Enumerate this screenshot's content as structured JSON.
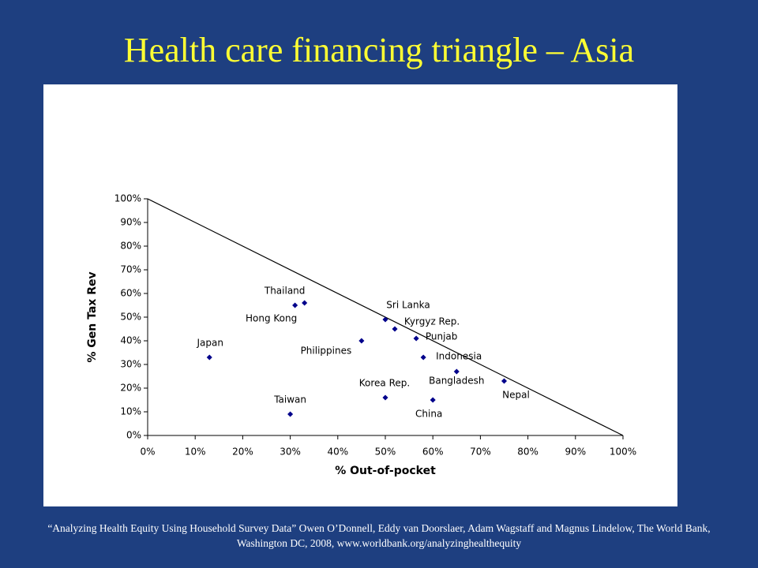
{
  "chart_data": {
    "type": "scatter",
    "title": "Health care financing triangle – Asia",
    "x_label": "% Out-of-pocket",
    "y_label": "% Gen Tax Rev",
    "labels": [
      "Japan",
      "Thailand",
      "Hong Kong",
      "Philippines",
      "Sri Lanka",
      "Kyrgyz Rep.",
      "Punjab",
      "Indonesia",
      "Bangladesh",
      "Nepal",
      "Korea Rep.",
      "China",
      "Taiwan"
    ],
    "x": [
      13,
      33,
      31,
      45,
      50,
      52,
      56.5,
      58,
      65,
      75,
      50,
      60,
      30
    ],
    "y": [
      33,
      56,
      55,
      40,
      49,
      45,
      41,
      33,
      27,
      23,
      16,
      15,
      9
    ],
    "color": "#00008b",
    "xlim": [
      0,
      100
    ],
    "ylim": [
      0,
      100
    ],
    "xticks": [
      {
        "value": 0,
        "label": "0%"
      },
      {
        "value": 10,
        "label": "10%"
      },
      {
        "value": 20,
        "label": "20%"
      },
      {
        "value": 30,
        "label": "30%"
      },
      {
        "value": 40,
        "label": "40%"
      },
      {
        "value": 50,
        "label": "50%"
      },
      {
        "value": 60,
        "label": "60%"
      },
      {
        "value": 70,
        "label": "70%"
      },
      {
        "value": 80,
        "label": "80%"
      },
      {
        "value": 90,
        "label": "90%"
      },
      {
        "value": 100,
        "label": "100%"
      }
    ],
    "yticks": [
      {
        "value": 0,
        "label": "0%"
      },
      {
        "value": 10,
        "label": "10%"
      },
      {
        "value": 20,
        "label": "20%"
      },
      {
        "value": 30,
        "label": "30%"
      },
      {
        "value": 40,
        "label": "40%"
      },
      {
        "value": 50,
        "label": "50%"
      },
      {
        "value": 60,
        "label": "60%"
      },
      {
        "value": 70,
        "label": "70%"
      },
      {
        "value": 80,
        "label": "80%"
      },
      {
        "value": 90,
        "label": "90%"
      },
      {
        "value": 100,
        "label": "100%"
      }
    ],
    "source": "“Analyzing Health Equity Using Household Survey Data” Owen O’Donnell, Eddy van Doorslaer, Adam Wagstaff and Magnus Lindelow, The World Bank, Washington DC, 2008, www.worldbank.org/analyzinghealthequity"
  }
}
